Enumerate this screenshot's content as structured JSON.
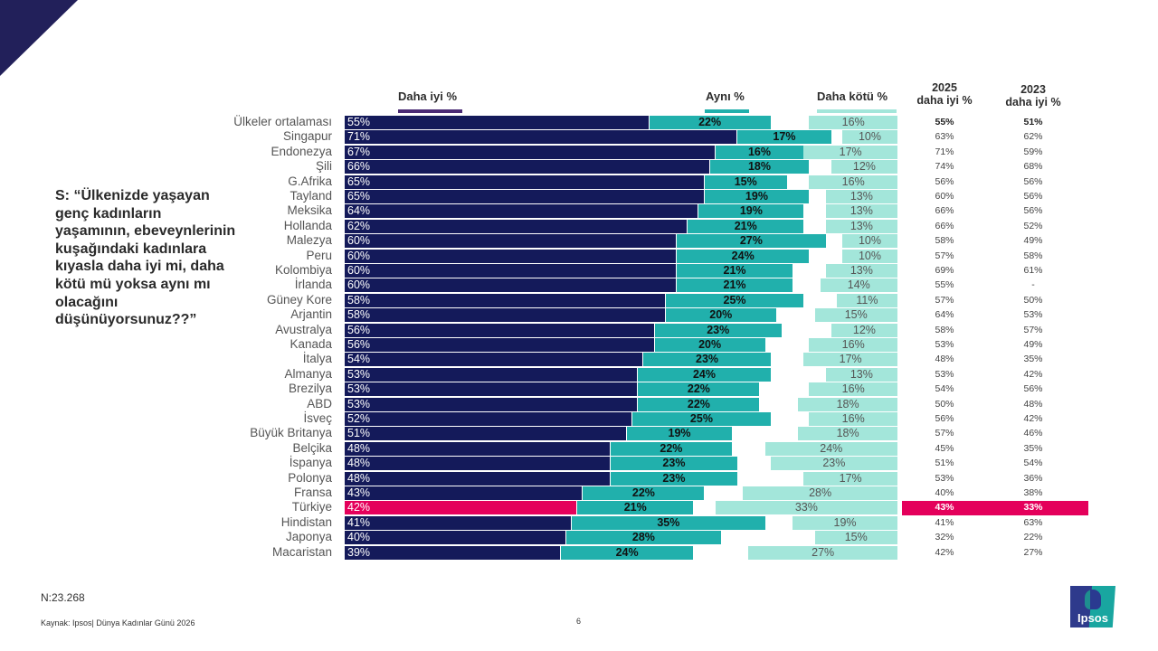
{
  "question": "S: “Ülkenizde yaşayan genç kadınların yaşamının, ebeveynlerinin kuşağındaki kadınlara kıyasla daha iyi mi, daha kötü mü yoksa aynı mı olacağını düşünüyorsunuz??”",
  "legend": {
    "better": "Daha iyi %",
    "same": "Aynı %",
    "worse": "Daha kötü %"
  },
  "columns": {
    "c2025_line1": "2025",
    "c2025_line2": "daha iyi %",
    "c2023_line1": "2023",
    "c2023_line2": "daha iyi %"
  },
  "colors": {
    "better": "#141a5a",
    "same": "#21b0ac",
    "worse": "#a3e6da",
    "highlight": "#e4005b",
    "legend_better_line": "#4a2a74"
  },
  "highlight_country": "Türkiye",
  "chart_data": {
    "type": "bar",
    "stacked": "diverging",
    "title": "",
    "xlabel": "",
    "ylabel": "",
    "series_names": [
      "Daha iyi %",
      "Aynı %",
      "Daha kötü %"
    ],
    "categories": [
      "Ülkeler ortalaması",
      "Singapur",
      "Endonezya",
      "Şili",
      "G.Afrika",
      "Tayland",
      "Meksika",
      "Hollanda",
      "Malezya",
      "Peru",
      "Kolombiya",
      "İrlanda",
      "Güney Kore",
      "Arjantin",
      "Avustralya",
      "Kanada",
      "İtalya",
      "Almanya",
      "Brezilya",
      "ABD",
      "İsveç",
      "Büyük Britanya",
      "Belçika",
      "İspanya",
      "Polonya",
      "Fransa",
      "Türkiye",
      "Hindistan",
      "Japonya",
      "Macaristan"
    ],
    "series": [
      {
        "name": "Daha iyi %",
        "values": [
          55,
          71,
          67,
          66,
          65,
          65,
          64,
          62,
          60,
          60,
          60,
          60,
          58,
          58,
          56,
          56,
          54,
          53,
          53,
          53,
          52,
          51,
          48,
          48,
          48,
          43,
          42,
          41,
          40,
          39
        ]
      },
      {
        "name": "Aynı %",
        "values": [
          22,
          17,
          16,
          18,
          15,
          19,
          19,
          21,
          27,
          24,
          21,
          21,
          25,
          20,
          23,
          20,
          23,
          24,
          22,
          22,
          25,
          19,
          22,
          23,
          23,
          22,
          21,
          35,
          28,
          24
        ]
      },
      {
        "name": "Daha kötü %",
        "values": [
          16,
          10,
          17,
          12,
          16,
          13,
          13,
          13,
          10,
          10,
          13,
          14,
          11,
          15,
          12,
          16,
          17,
          13,
          16,
          18,
          16,
          18,
          24,
          23,
          17,
          28,
          33,
          19,
          15,
          27
        ]
      }
    ],
    "table_2025_better": [
      "55%",
      "63%",
      "71%",
      "74%",
      "56%",
      "60%",
      "66%",
      "66%",
      "58%",
      "57%",
      "69%",
      "55%",
      "57%",
      "64%",
      "58%",
      "53%",
      "48%",
      "53%",
      "54%",
      "50%",
      "56%",
      "57%",
      "45%",
      "51%",
      "53%",
      "40%",
      "43%",
      "41%",
      "32%",
      "42%"
    ],
    "table_2023_better": [
      "51%",
      "62%",
      "59%",
      "68%",
      "56%",
      "56%",
      "56%",
      "52%",
      "49%",
      "58%",
      "61%",
      "-",
      "50%",
      "53%",
      "57%",
      "49%",
      "35%",
      "42%",
      "56%",
      "48%",
      "42%",
      "46%",
      "35%",
      "54%",
      "36%",
      "38%",
      "33%",
      "63%",
      "22%",
      "27%"
    ],
    "xlim": [
      0,
      100
    ],
    "grid": false,
    "legend_position": "top"
  },
  "footer": {
    "sample": "N:23.268",
    "source": "Kaynak: Ipsos| Dünya Kadınlar Günü 2026",
    "page": "6"
  },
  "logo": {
    "text": "Ipsos"
  }
}
